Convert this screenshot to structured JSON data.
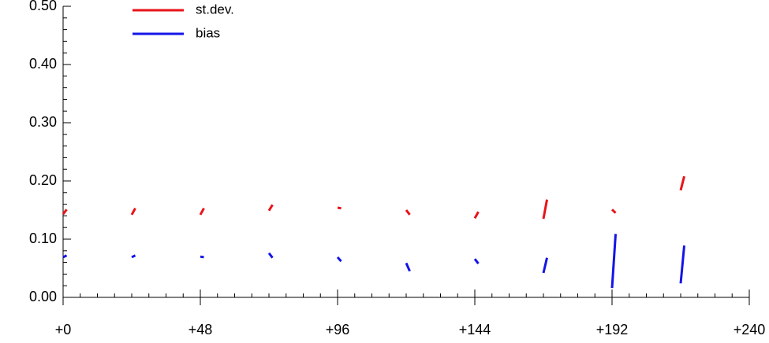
{
  "chart_data": {
    "type": "line",
    "x": [
      0,
      1.25,
      null,
      24,
      25.25,
      null,
      48,
      49.25,
      null,
      72,
      73.25,
      null,
      96,
      97.25,
      null,
      120,
      121.25,
      null,
      144,
      145.25,
      null,
      168,
      169.25,
      null,
      192,
      193.25,
      null,
      216,
      217.25
    ],
    "series": [
      {
        "name": "st.dev.",
        "color": "#e8141a",
        "values": [
          0.143,
          0.151,
          null,
          0.142,
          0.153,
          null,
          0.142,
          0.153,
          null,
          0.149,
          0.159,
          null,
          0.154,
          0.153,
          null,
          0.15,
          0.142,
          null,
          0.136,
          0.147,
          null,
          0.135,
          0.168,
          null,
          0.151,
          0.145,
          null,
          0.184,
          0.208
        ]
      },
      {
        "name": "bias",
        "color": "#1414e8",
        "values": [
          0.069,
          0.072,
          null,
          0.069,
          0.072,
          null,
          0.07,
          0.069,
          null,
          0.076,
          0.068,
          null,
          0.069,
          0.062,
          null,
          0.059,
          0.045,
          null,
          0.066,
          0.058,
          null,
          0.042,
          0.068,
          null,
          0.016,
          0.109,
          null,
          0.024,
          0.089
        ]
      }
    ],
    "xlim": [
      0,
      240
    ],
    "xticks": [
      {
        "value": 0,
        "label": "+0"
      },
      {
        "value": 48,
        "label": "+48"
      },
      {
        "value": 96,
        "label": "+96"
      },
      {
        "value": 144,
        "label": "+144"
      },
      {
        "value": 192,
        "label": "+192"
      },
      {
        "value": 240,
        "label": "+240"
      }
    ],
    "xminorticks": [
      0,
      6,
      12,
      18,
      24,
      30,
      36,
      42,
      48,
      54,
      60,
      66,
      72,
      78,
      84,
      90,
      96,
      102,
      108,
      114,
      120,
      126,
      132,
      138,
      144,
      150,
      156,
      162,
      168,
      174,
      180,
      186,
      192,
      198,
      204,
      210,
      216,
      222,
      228,
      234,
      240
    ],
    "ylim": [
      0,
      0.5
    ],
    "yticks": [
      {
        "value": 0,
        "label": "0.00"
      },
      {
        "value": 0.1,
        "label": "0.10"
      },
      {
        "value": 0.2,
        "label": "0.20"
      },
      {
        "value": 0.3,
        "label": "0.30"
      },
      {
        "value": 0.4,
        "label": "0.40"
      },
      {
        "value": 0.5,
        "label": "0.50"
      }
    ],
    "yminorticks": [
      0.02,
      0.04,
      0.06,
      0.08,
      0.12,
      0.14,
      0.16,
      0.18,
      0.22,
      0.24,
      0.26,
      0.28,
      0.32,
      0.34,
      0.36,
      0.38,
      0.42,
      0.44,
      0.46,
      0.48
    ]
  }
}
